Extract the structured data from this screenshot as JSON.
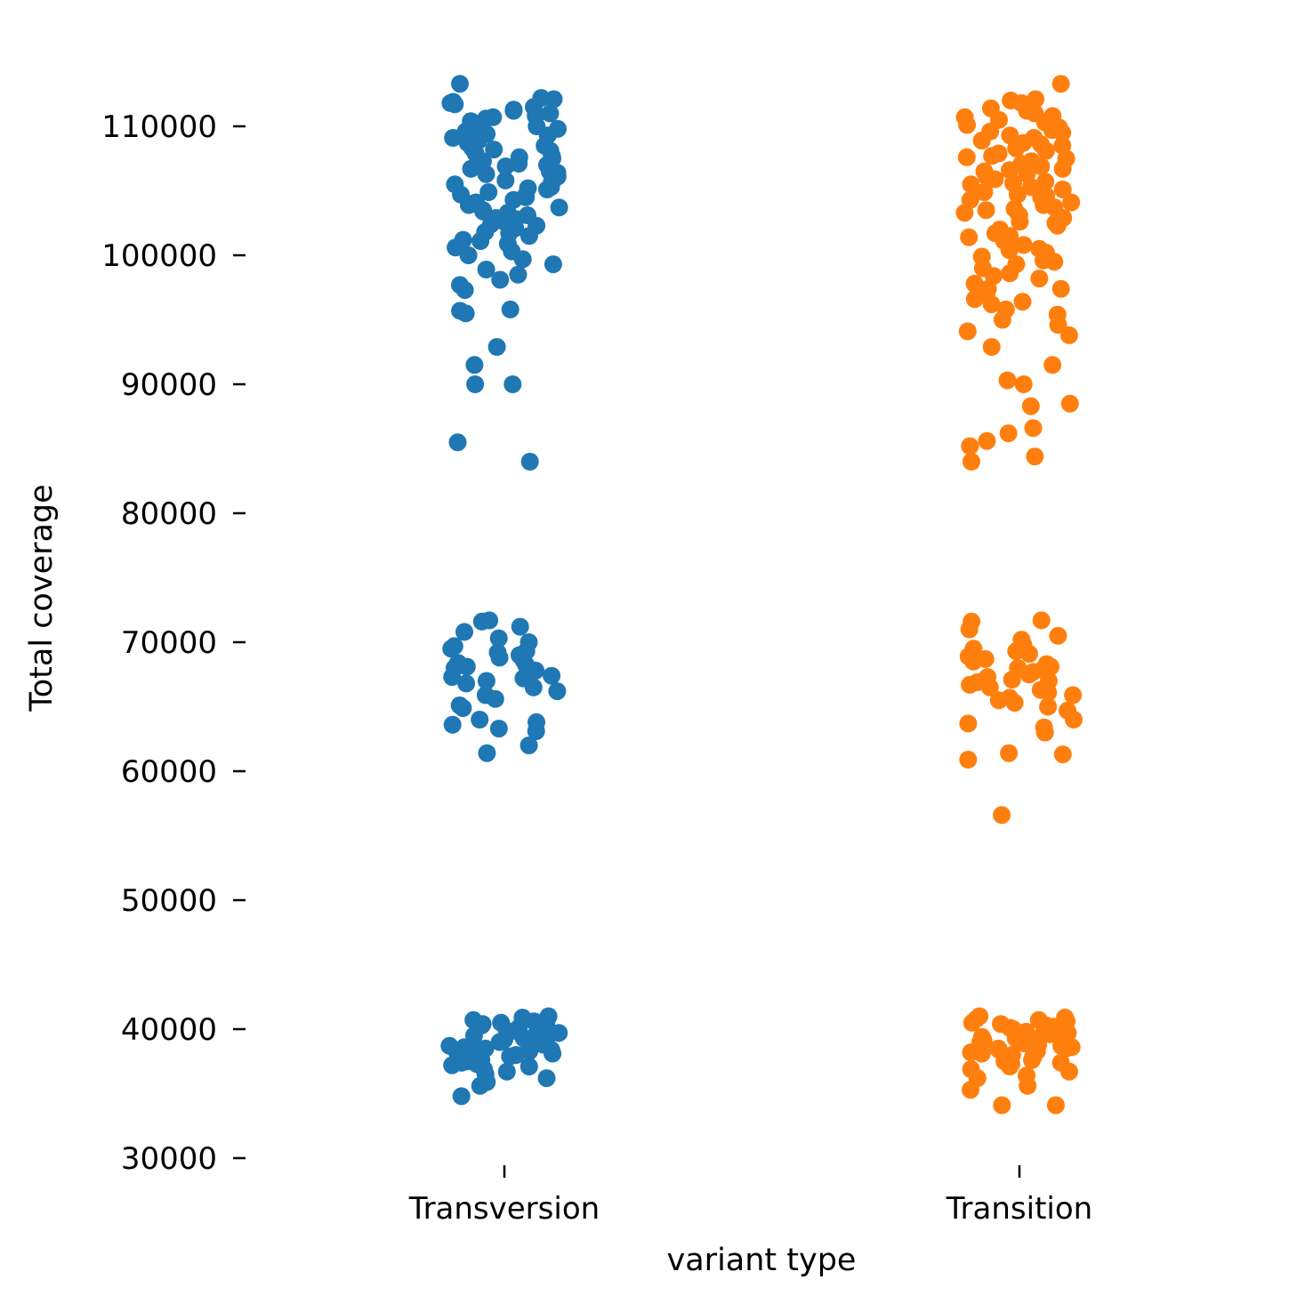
{
  "chart_data": {
    "type": "scatter",
    "subtype": "strip",
    "title": "",
    "xlabel": "variant type",
    "ylabel": "Total coverage",
    "categories": [
      "Transversion",
      "Transition"
    ],
    "ylim": [
      29000,
      115000
    ],
    "yticks": [
      30000,
      40000,
      50000,
      60000,
      70000,
      80000,
      90000,
      100000,
      110000
    ],
    "ytick_labels": [
      "30000",
      "40000",
      "50000",
      "60000",
      "70000",
      "80000",
      "90000",
      "100000",
      "110000"
    ],
    "grid": false,
    "legend": "none",
    "series": [
      {
        "category": "Transversion",
        "color": "#1f77b4",
        "values": [
          113300,
          112200,
          112100,
          111900,
          111800,
          111700,
          111500,
          111300,
          111000,
          110800,
          110600,
          110400,
          110200,
          110000,
          109800,
          109600,
          109400,
          109100,
          108900,
          108700,
          108500,
          108300,
          108100,
          107900,
          107700,
          107500,
          107300,
          107100,
          106900,
          106700,
          106500,
          106300,
          106100,
          105900,
          105700,
          105500,
          105300,
          105100,
          104900,
          104700,
          104500,
          104300,
          104100,
          103900,
          103700,
          103500,
          103300,
          103100,
          102800,
          102600,
          102400,
          102100,
          101800,
          101500,
          101200,
          100900,
          100600,
          100300,
          100000,
          99700,
          99300,
          98900,
          98500,
          98100,
          97700,
          97300,
          95800,
          95700,
          95500,
          92900,
          91500,
          90000,
          90000,
          85500,
          84000,
          111200,
          110700,
          109900,
          109300,
          108800,
          108200,
          107600,
          107000,
          106400,
          105800,
          105200,
          104600,
          104000,
          103400,
          102900,
          102300,
          101700,
          101100,
          71700,
          71600,
          71200,
          70800,
          70300,
          70000,
          69700,
          69500,
          69200,
          69000,
          68800,
          68600,
          68400,
          68200,
          68000,
          67800,
          67600,
          67400,
          67200,
          67000,
          66800,
          66500,
          66200,
          65900,
          65600,
          65100,
          64900,
          64000,
          63800,
          63600,
          63300,
          63100,
          62000,
          61400,
          69300,
          68100,
          67300,
          41000,
          40900,
          40800,
          40700,
          40600,
          40500,
          40400,
          40300,
          40200,
          40100,
          40000,
          39900,
          39800,
          39700,
          39600,
          39500,
          39400,
          39300,
          39200,
          39100,
          39000,
          38900,
          38800,
          38700,
          38600,
          38500,
          38400,
          38300,
          38200,
          38100,
          38000,
          37900,
          37800,
          37700,
          37600,
          37500,
          37400,
          37300,
          37100,
          36900,
          36700,
          36500,
          36200,
          35900,
          35600,
          34800,
          39700,
          38400,
          37200,
          40600
        ]
      },
      {
        "category": "Transition",
        "color": "#ff7f0e",
        "values": [
          113300,
          112100,
          112000,
          111800,
          111600,
          111400,
          111200,
          111000,
          110800,
          110500,
          110300,
          110100,
          109900,
          109700,
          109500,
          109300,
          109100,
          108900,
          108700,
          108500,
          108300,
          108100,
          107900,
          107700,
          107500,
          107300,
          107100,
          106900,
          106700,
          106500,
          106300,
          106100,
          105900,
          105700,
          105500,
          105300,
          105100,
          104900,
          104700,
          104500,
          104300,
          104100,
          103900,
          103700,
          103500,
          103300,
          103100,
          102900,
          102600,
          102300,
          102000,
          101700,
          101400,
          101100,
          100800,
          100500,
          100200,
          99900,
          99600,
          99300,
          99000,
          98600,
          98200,
          97800,
          97400,
          97000,
          96600,
          96200,
          95800,
          95400,
          95000,
          94600,
          94100,
          93800,
          92900,
          91500,
          90300,
          90000,
          88500,
          88300,
          86600,
          86200,
          85600,
          85200,
          84400,
          84000,
          110700,
          109600,
          108600,
          107600,
          106600,
          105600,
          104600,
          103600,
          102500,
          101500,
          100400,
          99500,
          98400,
          97400,
          96400,
          71700,
          71600,
          71000,
          70500,
          70200,
          69800,
          69500,
          69300,
          69100,
          68900,
          68700,
          68500,
          68300,
          68100,
          67900,
          67700,
          67500,
          67300,
          67100,
          66900,
          66700,
          66500,
          66300,
          66100,
          65900,
          65700,
          65500,
          65300,
          65000,
          64700,
          64000,
          63700,
          63400,
          63000,
          61400,
          61300,
          60900,
          56600,
          68000,
          67000,
          41000,
          40900,
          40800,
          40700,
          40600,
          40500,
          40400,
          40300,
          40200,
          40100,
          40000,
          39900,
          39800,
          39700,
          39600,
          39500,
          39400,
          39300,
          39200,
          39100,
          39000,
          38900,
          38800,
          38700,
          38600,
          38500,
          38400,
          38300,
          38200,
          38100,
          38000,
          37900,
          37800,
          37700,
          37600,
          37500,
          37300,
          37100,
          36900,
          36700,
          36400,
          36200,
          35600,
          35300,
          34100,
          34100,
          39700,
          38500,
          37400
        ]
      }
    ]
  }
}
